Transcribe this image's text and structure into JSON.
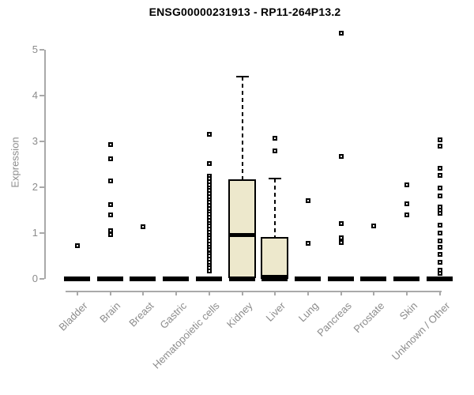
{
  "chart_data": {
    "type": "boxplot",
    "title": "ENSG00000231913 - RP11-264P13.2",
    "ylabel": "Expression",
    "xlabel": "",
    "ylim": [
      0,
      5
    ],
    "yticks": [
      0,
      1,
      2,
      3,
      4,
      5
    ],
    "grid": false,
    "legend": null,
    "style": {
      "box_fill": "#ede8cc",
      "box_border": "#000000",
      "median_color": "#000000",
      "outlier_color": "#000000",
      "axis_color": "#a9a9a9",
      "text_color": "#8c8c8c",
      "title_color": "#000000",
      "background": "#ffffff"
    },
    "categories": [
      "Bladder",
      "Brain",
      "Breast",
      "Gastric",
      "Hematopoietic cells",
      "Kidney",
      "Liver",
      "Lung",
      "Pancreas",
      "Prostate",
      "Skin",
      "Unknown / Other"
    ],
    "groups": [
      {
        "name": "Bladder",
        "zero_bar": true,
        "box": null,
        "outliers": [
          0.72
        ]
      },
      {
        "name": "Brain",
        "zero_bar": true,
        "box": null,
        "outliers": [
          2.93,
          2.62,
          2.14,
          1.62,
          1.4,
          1.05,
          0.97
        ]
      },
      {
        "name": "Breast",
        "zero_bar": true,
        "box": null,
        "outliers": [
          1.14
        ]
      },
      {
        "name": "Gastric",
        "zero_bar": true,
        "box": null,
        "outliers": []
      },
      {
        "name": "Hematopoietic cells",
        "zero_bar": true,
        "box": null,
        "outliers": [
          3.16,
          2.52,
          2.25,
          2.19,
          2.12,
          2.06,
          1.99,
          1.93,
          1.86,
          1.8,
          1.73,
          1.67,
          1.6,
          1.54,
          1.47,
          1.41,
          1.34,
          1.28,
          1.21,
          1.15,
          1.08,
          1.02,
          0.95,
          0.89,
          0.82,
          0.76,
          0.69,
          0.63,
          0.56,
          0.5,
          0.43,
          0.37,
          0.3,
          0.24,
          0.17
        ]
      },
      {
        "name": "Kidney",
        "zero_bar": true,
        "box": {
          "q1": 0.02,
          "median": 0.97,
          "q3": 2.17,
          "whisker_high": 4.41
        },
        "outliers": []
      },
      {
        "name": "Liver",
        "zero_bar": true,
        "box": {
          "q1": 0.0,
          "median": 0.05,
          "q3": 0.91,
          "whisker_high": 2.19
        },
        "outliers": [
          3.07,
          2.79
        ]
      },
      {
        "name": "Lung",
        "zero_bar": true,
        "box": null,
        "outliers": [
          1.7,
          0.78
        ]
      },
      {
        "name": "Pancreas",
        "zero_bar": true,
        "box": null,
        "outliers": [
          5.36,
          2.67,
          1.21,
          0.9,
          0.79
        ]
      },
      {
        "name": "Prostate",
        "zero_bar": true,
        "box": null,
        "outliers": [
          1.15
        ]
      },
      {
        "name": "Skin",
        "zero_bar": true,
        "box": null,
        "outliers": [
          2.05,
          1.63,
          1.4
        ]
      },
      {
        "name": "Unknown / Other",
        "zero_bar": true,
        "box": null,
        "outliers": [
          3.03,
          2.9,
          2.41,
          2.26,
          1.98,
          1.81,
          1.57,
          1.5,
          1.43,
          1.17,
          1.0,
          0.83,
          0.69,
          0.53,
          0.36,
          0.19,
          0.12
        ]
      }
    ]
  }
}
